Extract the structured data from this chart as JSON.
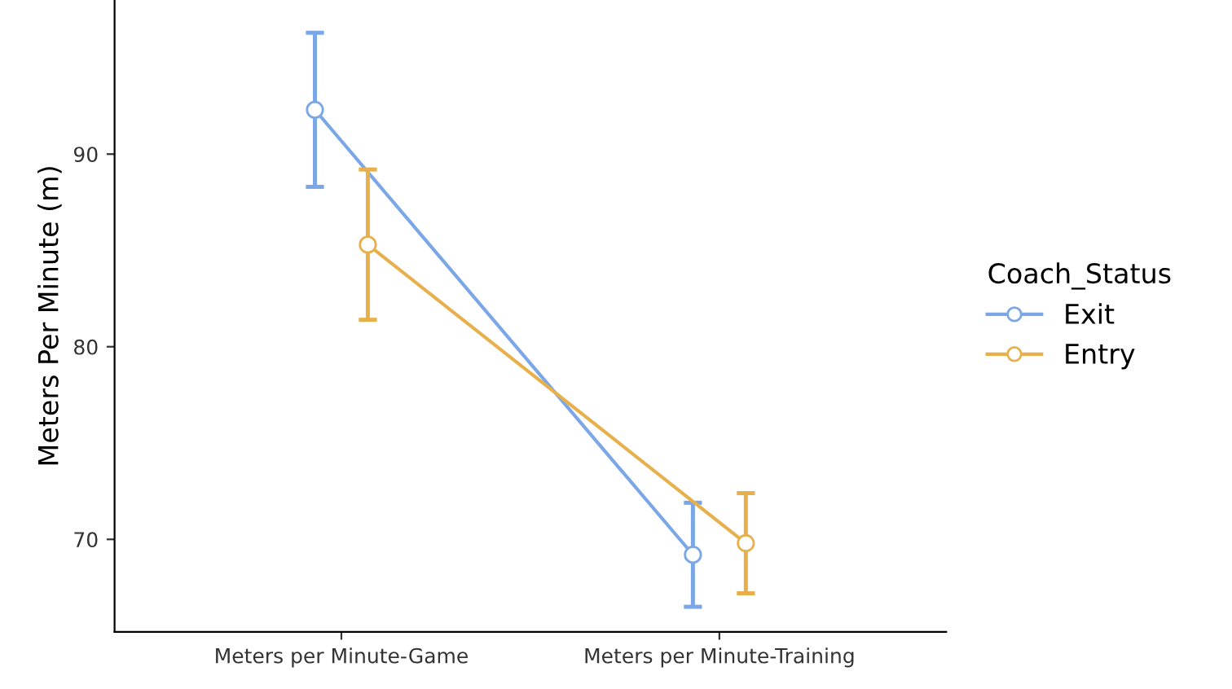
{
  "chart_data": {
    "type": "line",
    "ylabel": "Meters Per Minute (m)",
    "legend_title": "Coach_Status",
    "categories": [
      "Meters per Minute-Game",
      "Meters per Minute-Training"
    ],
    "series": [
      {
        "name": "Exit",
        "color": "#7ba7e6",
        "values": [
          92.3,
          69.2
        ],
        "errors": [
          4.0,
          2.7
        ]
      },
      {
        "name": "Entry",
        "color": "#e8b04c",
        "values": [
          85.3,
          69.8
        ],
        "errors": [
          3.9,
          2.6
        ]
      }
    ],
    "ylim": [
      65.2,
      98
    ],
    "yticks": [
      70,
      80,
      90
    ],
    "grid": false,
    "legend": "right",
    "marker": "circle",
    "line_style": "solid"
  }
}
